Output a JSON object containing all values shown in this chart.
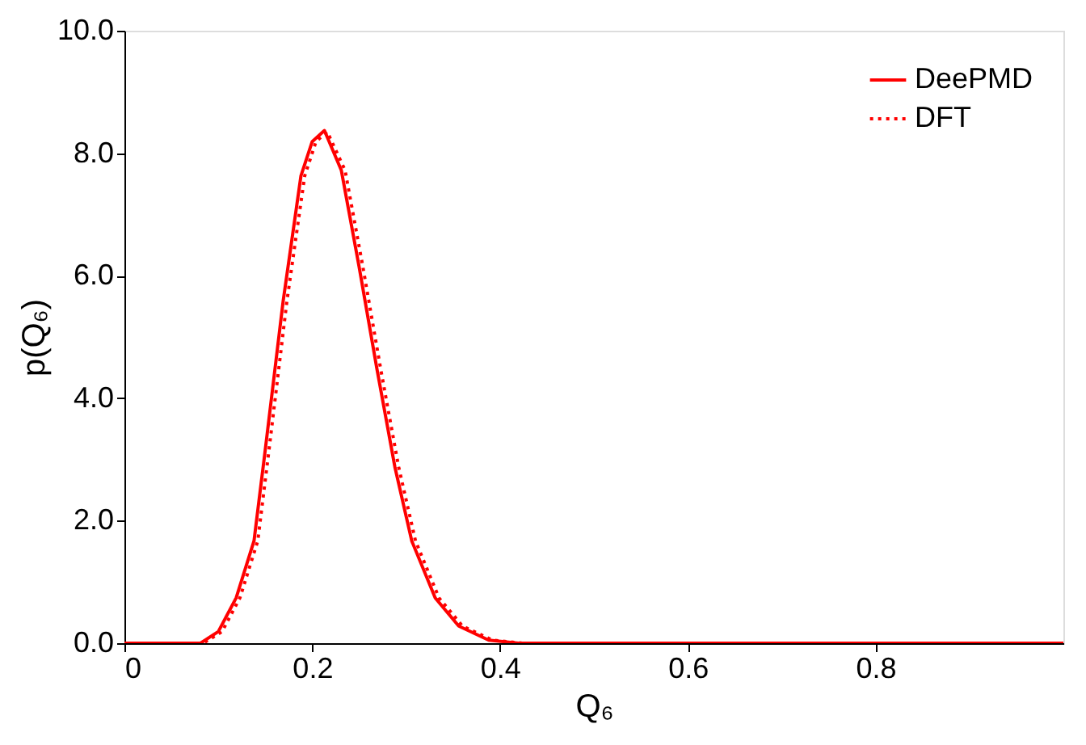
{
  "chart_data": {
    "type": "line",
    "xlabel": "Q₆",
    "ylabel": "p(Q₆)",
    "xlim": [
      0,
      1.0
    ],
    "xticks": [
      {
        "value": 0,
        "label": "0"
      },
      0.2,
      0.4,
      0.6,
      0.8
    ],
    "ylim": [
      0,
      10
    ],
    "yticks": [
      {
        "value": 0,
        "label": "0.0"
      },
      {
        "value": 2,
        "label": "2.0"
      },
      {
        "value": 4,
        "label": "4.0"
      },
      {
        "value": 6,
        "label": "6.0"
      },
      {
        "value": 8,
        "label": "8.0"
      },
      {
        "value": 10,
        "label": "10.0"
      }
    ],
    "grid": false,
    "legend": "top right",
    "series": [
      {
        "name": "DeePMD",
        "color": "#ff0000",
        "line_style": "solid",
        "x": [
          0,
          0.05,
          0.081,
          0.1,
          0.119,
          0.138,
          0.15,
          0.169,
          0.188,
          0.2,
          0.213,
          0.231,
          0.25,
          0.269,
          0.288,
          0.306,
          0.331,
          0.356,
          0.388,
          0.42,
          0.5,
          0.6,
          0.7,
          0.8,
          0.9,
          1.0
        ],
        "values": [
          0,
          0,
          0,
          0.19,
          0.74,
          1.67,
          3.16,
          5.58,
          7.63,
          8.19,
          8.37,
          7.72,
          6.14,
          4.47,
          2.88,
          1.67,
          0.74,
          0.28,
          0.05,
          0,
          0,
          0,
          0,
          0,
          0,
          0
        ]
      },
      {
        "name": "DFT",
        "color": "#ff0000",
        "line_style": "dotted",
        "x": [
          0,
          0.05,
          0.084,
          0.104,
          0.123,
          0.142,
          0.154,
          0.173,
          0.192,
          0.204,
          0.216,
          0.235,
          0.254,
          0.273,
          0.292,
          0.31,
          0.335,
          0.36,
          0.392,
          0.424,
          0.5,
          0.6,
          0.7,
          0.8,
          0.9,
          1.0
        ],
        "values": [
          0,
          0,
          0,
          0.19,
          0.74,
          1.67,
          3.16,
          5.58,
          7.63,
          8.19,
          8.35,
          7.72,
          6.14,
          4.47,
          2.88,
          1.67,
          0.74,
          0.28,
          0.05,
          0,
          0,
          0,
          0,
          0,
          0,
          0
        ]
      }
    ]
  }
}
